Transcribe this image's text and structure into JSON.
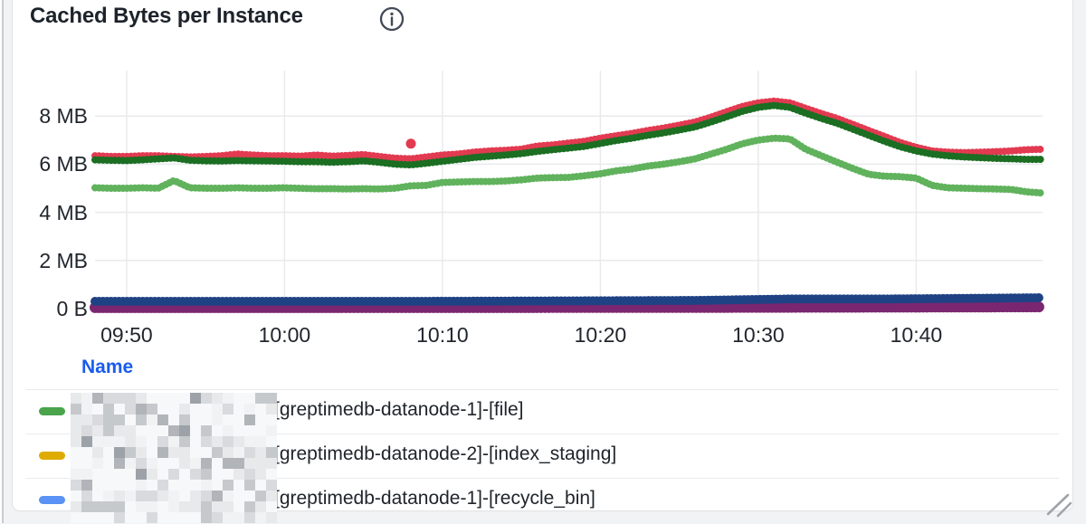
{
  "panel": {
    "title": "Cached Bytes per Instance",
    "info_icon": "info-circle-icon",
    "background": "#ffffff",
    "border_color": "#e2e4e7"
  },
  "chart_data": {
    "type": "line",
    "style": "dense-dotted-step-series",
    "title": "Cached Bytes per Instance",
    "grid": true,
    "x_axis": {
      "start": "09:48",
      "end": "10:48",
      "ticks": [
        {
          "minutes": 2,
          "label": "09:50"
        },
        {
          "minutes": 12,
          "label": "10:00"
        },
        {
          "minutes": 22,
          "label": "10:10"
        },
        {
          "minutes": 32,
          "label": "10:20"
        },
        {
          "minutes": 42,
          "label": "10:30"
        },
        {
          "minutes": 52,
          "label": "10:40"
        }
      ]
    },
    "y_axis": {
      "unit": "bytes",
      "range_mb": [
        0,
        9.8
      ],
      "ticks": [
        {
          "mb": 8,
          "label": "8 MB"
        },
        {
          "mb": 6,
          "label": "6 MB"
        },
        {
          "mb": 4,
          "label": "4 MB"
        },
        {
          "mb": 2,
          "label": "2 MB"
        },
        {
          "mb": 0,
          "label": "0 B"
        }
      ]
    },
    "series": [
      {
        "name": "purple-series",
        "color": "#7b2670",
        "width": 12,
        "points": [
          [
            0,
            0.04
          ],
          [
            20,
            0.04
          ],
          [
            40,
            0.05
          ],
          [
            60,
            0.07
          ]
        ]
      },
      {
        "name": "navy-series",
        "color": "#1f4284",
        "width": 10,
        "points": [
          [
            0,
            0.3
          ],
          [
            10,
            0.3
          ],
          [
            20,
            0.3
          ],
          [
            30,
            0.32
          ],
          [
            38,
            0.34
          ],
          [
            44,
            0.4
          ],
          [
            50,
            0.4
          ],
          [
            56,
            0.43
          ],
          [
            60,
            0.45
          ]
        ]
      },
      {
        "name": "crimson-series",
        "color": "#e23a51",
        "width": 8,
        "points": [
          [
            0,
            6.35
          ],
          [
            1,
            6.32
          ],
          [
            2,
            6.32
          ],
          [
            3,
            6.35
          ],
          [
            4,
            6.35
          ],
          [
            5,
            6.32
          ],
          [
            6,
            6.3
          ],
          [
            7,
            6.32
          ],
          [
            8,
            6.35
          ],
          [
            9,
            6.42
          ],
          [
            10,
            6.38
          ],
          [
            11,
            6.35
          ],
          [
            12,
            6.35
          ],
          [
            13,
            6.33
          ],
          [
            14,
            6.38
          ],
          [
            15,
            6.33
          ],
          [
            16,
            6.36
          ],
          [
            17,
            6.4
          ],
          [
            18,
            6.32
          ],
          [
            19,
            6.25
          ],
          [
            20,
            6.22
          ],
          [
            21,
            6.3
          ],
          [
            22,
            6.38
          ],
          [
            23,
            6.42
          ],
          [
            24,
            6.5
          ],
          [
            25,
            6.55
          ],
          [
            26,
            6.58
          ],
          [
            27,
            6.62
          ],
          [
            28,
            6.75
          ],
          [
            29,
            6.8
          ],
          [
            30,
            6.88
          ],
          [
            31,
            6.95
          ],
          [
            32,
            7.08
          ],
          [
            33,
            7.18
          ],
          [
            34,
            7.28
          ],
          [
            35,
            7.4
          ],
          [
            36,
            7.5
          ],
          [
            37,
            7.62
          ],
          [
            38,
            7.75
          ],
          [
            39,
            7.95
          ],
          [
            40,
            8.18
          ],
          [
            41,
            8.4
          ],
          [
            42,
            8.55
          ],
          [
            43,
            8.62
          ],
          [
            44,
            8.55
          ],
          [
            45,
            8.32
          ],
          [
            46,
            8.1
          ],
          [
            47,
            7.9
          ],
          [
            48,
            7.65
          ],
          [
            49,
            7.4
          ],
          [
            50,
            7.15
          ],
          [
            51,
            6.9
          ],
          [
            52,
            6.7
          ],
          [
            53,
            6.55
          ],
          [
            54,
            6.5
          ],
          [
            55,
            6.48
          ],
          [
            56,
            6.5
          ],
          [
            57,
            6.52
          ],
          [
            58,
            6.55
          ],
          [
            59,
            6.6
          ],
          [
            60,
            6.62
          ]
        ]
      },
      {
        "name": "dark-green-series",
        "color": "#1b6e22",
        "width": 8,
        "points": [
          [
            0,
            6.18
          ],
          [
            1,
            6.16
          ],
          [
            2,
            6.15
          ],
          [
            3,
            6.18
          ],
          [
            4,
            6.22
          ],
          [
            5,
            6.26
          ],
          [
            6,
            6.16
          ],
          [
            7,
            6.14
          ],
          [
            8,
            6.13
          ],
          [
            9,
            6.15
          ],
          [
            10,
            6.14
          ],
          [
            11,
            6.13
          ],
          [
            12,
            6.12
          ],
          [
            13,
            6.1
          ],
          [
            14,
            6.1
          ],
          [
            15,
            6.08
          ],
          [
            16,
            6.1
          ],
          [
            17,
            6.14
          ],
          [
            18,
            6.08
          ],
          [
            19,
            6.0
          ],
          [
            20,
            5.97
          ],
          [
            21,
            6.04
          ],
          [
            22,
            6.12
          ],
          [
            23,
            6.2
          ],
          [
            24,
            6.28
          ],
          [
            25,
            6.33
          ],
          [
            26,
            6.38
          ],
          [
            27,
            6.44
          ],
          [
            28,
            6.53
          ],
          [
            29,
            6.6
          ],
          [
            30,
            6.67
          ],
          [
            31,
            6.74
          ],
          [
            32,
            6.86
          ],
          [
            33,
            6.98
          ],
          [
            34,
            7.08
          ],
          [
            35,
            7.2
          ],
          [
            36,
            7.3
          ],
          [
            37,
            7.42
          ],
          [
            38,
            7.55
          ],
          [
            39,
            7.75
          ],
          [
            40,
            7.97
          ],
          [
            41,
            8.2
          ],
          [
            42,
            8.36
          ],
          [
            43,
            8.44
          ],
          [
            44,
            8.36
          ],
          [
            45,
            8.12
          ],
          [
            46,
            7.9
          ],
          [
            47,
            7.7
          ],
          [
            48,
            7.45
          ],
          [
            49,
            7.2
          ],
          [
            50,
            6.95
          ],
          [
            51,
            6.72
          ],
          [
            52,
            6.55
          ],
          [
            53,
            6.42
          ],
          [
            54,
            6.35
          ],
          [
            55,
            6.3
          ],
          [
            56,
            6.27
          ],
          [
            57,
            6.24
          ],
          [
            58,
            6.22
          ],
          [
            59,
            6.2
          ],
          [
            60,
            6.2
          ]
        ]
      },
      {
        "name": "light-green-series",
        "color": "#60b25c",
        "width": 8,
        "points": [
          [
            0,
            5.02
          ],
          [
            1,
            5.0
          ],
          [
            2,
            5.0
          ],
          [
            3,
            5.02
          ],
          [
            4,
            5.0
          ],
          [
            5,
            5.32
          ],
          [
            6,
            5.02
          ],
          [
            7,
            5.0
          ],
          [
            8,
            5.0
          ],
          [
            9,
            5.02
          ],
          [
            10,
            5.0
          ],
          [
            11,
            5.0
          ],
          [
            12,
            5.02
          ],
          [
            13,
            5.0
          ],
          [
            14,
            4.98
          ],
          [
            15,
            4.98
          ],
          [
            16,
            4.97
          ],
          [
            17,
            4.98
          ],
          [
            18,
            4.97
          ],
          [
            19,
            5.0
          ],
          [
            20,
            5.1
          ],
          [
            21,
            5.12
          ],
          [
            22,
            5.24
          ],
          [
            23,
            5.26
          ],
          [
            24,
            5.28
          ],
          [
            25,
            5.28
          ],
          [
            26,
            5.3
          ],
          [
            27,
            5.35
          ],
          [
            28,
            5.42
          ],
          [
            29,
            5.44
          ],
          [
            30,
            5.45
          ],
          [
            31,
            5.52
          ],
          [
            32,
            5.6
          ],
          [
            33,
            5.72
          ],
          [
            34,
            5.8
          ],
          [
            35,
            5.92
          ],
          [
            36,
            6.0
          ],
          [
            37,
            6.1
          ],
          [
            38,
            6.22
          ],
          [
            39,
            6.42
          ],
          [
            40,
            6.62
          ],
          [
            41,
            6.85
          ],
          [
            42,
            7.0
          ],
          [
            43,
            7.08
          ],
          [
            44,
            7.05
          ],
          [
            45,
            6.62
          ],
          [
            46,
            6.35
          ],
          [
            47,
            6.08
          ],
          [
            48,
            5.82
          ],
          [
            49,
            5.58
          ],
          [
            50,
            5.5
          ],
          [
            51,
            5.48
          ],
          [
            52,
            5.42
          ],
          [
            53,
            5.12
          ],
          [
            54,
            5.02
          ],
          [
            55,
            5.0
          ],
          [
            56,
            4.98
          ],
          [
            57,
            4.97
          ],
          [
            58,
            4.95
          ],
          [
            59,
            4.85
          ],
          [
            60,
            4.8
          ]
        ]
      }
    ],
    "outliers": [
      {
        "series": "crimson-series",
        "minutes": 20,
        "mb": 6.85
      }
    ]
  },
  "legend": {
    "header": "Name",
    "header_color": "#1a5ceb",
    "redacted_prefix": true,
    "rows": [
      {
        "indicator_color": "#4aa44b",
        "label": "[greptimedb-datanode-1]-[file]"
      },
      {
        "indicator_color": "#e0ab00",
        "label": "[greptimedb-datanode-2]-[index_staging]"
      },
      {
        "indicator_color": "#5a92f5",
        "label": "[greptimedb-datanode-1]-[recycle_bin]"
      }
    ]
  }
}
